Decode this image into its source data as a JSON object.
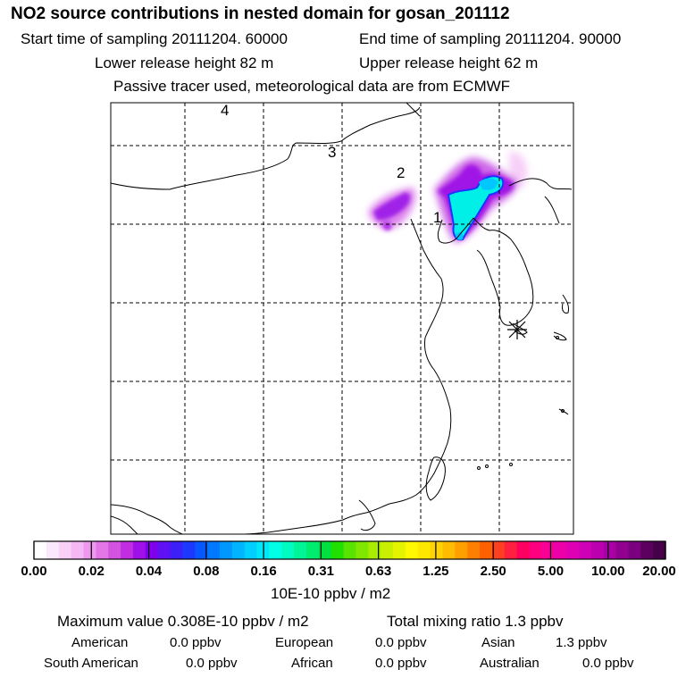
{
  "header": {
    "title": "NO2 source contributions in nested domain for gosan_201112",
    "start_time": "Start time of sampling 20111204. 60000",
    "end_time": "End time of sampling 20111204. 90000",
    "lower_release": "Lower release height   82 m",
    "upper_release": "Upper release height   62 m",
    "tracer_note": "Passive tracer used, meteorological data are from ECMWF"
  },
  "map": {
    "markers": [
      "1",
      "2",
      "3",
      "4"
    ],
    "receptor_symbol": "asterisk"
  },
  "colorbar": {
    "ticks": [
      "0.00",
      "0.02",
      "0.04",
      "0.08",
      "0.16",
      "0.31",
      "0.63",
      "1.25",
      "2.50",
      "5.00",
      "10.00",
      "20.00"
    ],
    "unit": "10E-10 ppbv / m2",
    "colors": [
      "#ffffff",
      "#fce8fc",
      "#f8d0f8",
      "#f4b8f4",
      "#ee99ee",
      "#e477e6",
      "#d452e0",
      "#c02ee0",
      "#a010e8",
      "#8000ee",
      "#6010f4",
      "#3c20f8",
      "#1c38fc",
      "#0858ff",
      "#0078ff",
      "#0098ff",
      "#00b4ff",
      "#00d0ff",
      "#00e8f8",
      "#00ffe6",
      "#00fcc0",
      "#00f498",
      "#00ec70",
      "#00e040",
      "#20e000",
      "#58e400",
      "#80e800",
      "#a8ec00",
      "#c8f000",
      "#e4f400",
      "#fff800",
      "#ffe800",
      "#ffd400",
      "#ffbc00",
      "#ffa000",
      "#ff8000",
      "#ff6000",
      "#ff4020",
      "#ff2040",
      "#ff0060",
      "#ff0080",
      "#f80098",
      "#ec00a8",
      "#e000b4",
      "#d000b8",
      "#bc00b0",
      "#a800a4",
      "#920090",
      "#7a0080",
      "#5c0060",
      "#440048"
    ]
  },
  "footer": {
    "max_value": "Maximum value  0.308E-10 ppbv / m2",
    "total_mixing": "Total mixing ratio       1.3 ppbv",
    "regions": [
      {
        "name": "American",
        "value": "0.0 ppbv"
      },
      {
        "name": "European",
        "value": "0.0 ppbv"
      },
      {
        "name": "Asian",
        "value": "1.3 ppbv"
      },
      {
        "name": "South American",
        "value": "0.0 ppbv"
      },
      {
        "name": "African",
        "value": "0.0 ppbv"
      },
      {
        "name": "Australian",
        "value": "0.0 ppbv"
      }
    ]
  }
}
